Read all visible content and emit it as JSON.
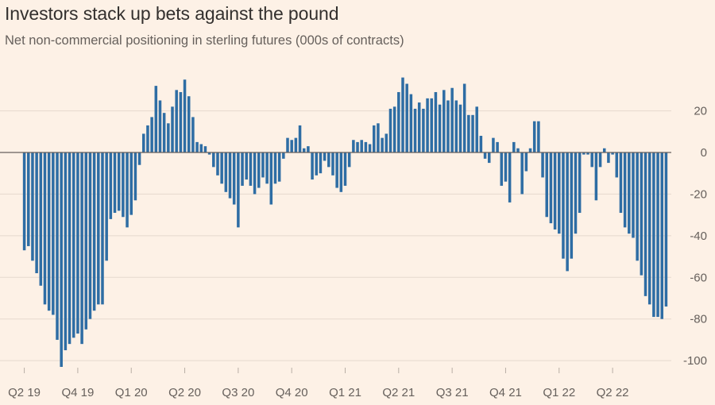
{
  "chart_data": {
    "type": "bar",
    "title": "Investors stack up bets against the pound",
    "subtitle": "Net non-commercial positioning in sterling futures (000s of contracts)",
    "xlabel": "",
    "ylabel": "",
    "ylim": [
      -103,
      37
    ],
    "y_ticks": [
      20,
      0,
      -20,
      -40,
      -60,
      -80,
      -100
    ],
    "grid": true,
    "bar_color": "#2e6da4",
    "background_color": "#fdf1e6",
    "x_tick_labels": [
      "Q2 19",
      "Q4 19",
      "Q1 20",
      "Q2 20",
      "Q3 20",
      "Q4 20",
      "Q1 21",
      "Q2 21",
      "Q3 21",
      "Q4 21",
      "Q1 22",
      "Q2 22"
    ],
    "x_tick_label_index": [
      0,
      13,
      26,
      39,
      52,
      65,
      78,
      91,
      104,
      117,
      130,
      143
    ],
    "values": [
      -47,
      -45,
      -52,
      -58,
      -64,
      -73,
      -76,
      -78,
      -90,
      -103,
      -95,
      -92,
      -89,
      -87,
      -92,
      -85,
      -80,
      -76,
      -73,
      -73,
      -52,
      -32,
      -29,
      -28,
      -31,
      -36,
      -30,
      -23,
      -6,
      9,
      13,
      17,
      32,
      25,
      19,
      14,
      22,
      30,
      29,
      35,
      27,
      17,
      5,
      4,
      3,
      -1,
      -7,
      -11,
      -15,
      -19,
      -22,
      -25,
      -36,
      -16,
      -13,
      -16,
      -20,
      -17,
      -12,
      -15,
      -25,
      -15,
      -14,
      -3,
      7,
      6,
      7,
      13,
      2,
      3,
      -13,
      -11,
      -10,
      -4,
      -7,
      -11,
      -17,
      -19,
      -16,
      -7,
      6,
      5,
      6,
      5,
      4,
      13,
      14,
      7,
      9,
      21,
      22,
      29,
      36,
      33,
      28,
      21,
      24,
      21,
      26,
      26,
      29,
      23,
      30,
      25,
      31,
      25,
      23,
      33,
      18,
      18,
      22,
      8,
      -3,
      -5,
      7,
      5,
      -16,
      -14,
      -24,
      5,
      2,
      -20,
      -9,
      2,
      15,
      15,
      -12,
      -31,
      -34,
      -37,
      -39,
      -51,
      -57,
      -51,
      -39,
      -29,
      -1,
      -1,
      -7,
      -23,
      -7,
      2,
      -5,
      -1,
      -12,
      -29,
      -36,
      -39,
      -41,
      -52,
      -59,
      -69,
      -73,
      -79,
      -79,
      -80,
      -74
    ]
  }
}
